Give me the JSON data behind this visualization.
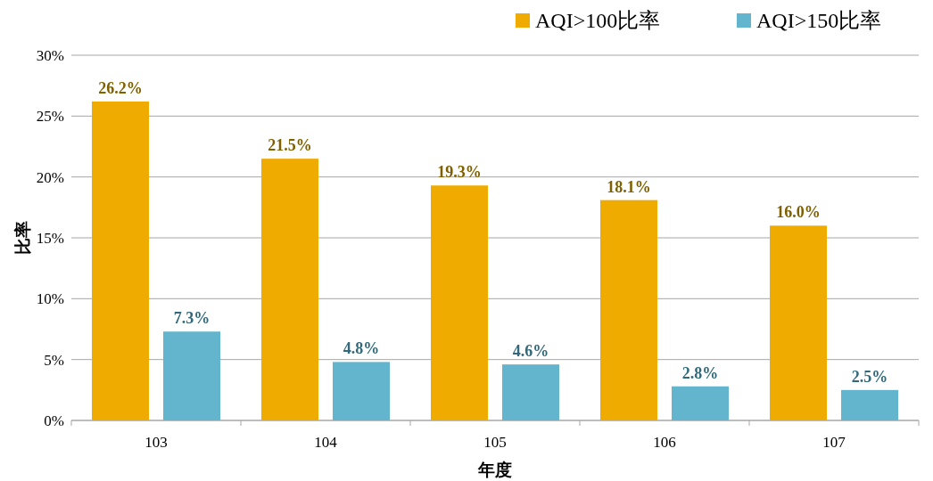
{
  "chart_data": {
    "type": "bar",
    "xlabel": "年度",
    "ylabel": "比率",
    "categories": [
      "103",
      "104",
      "105",
      "106",
      "107"
    ],
    "series": [
      {
        "name": "AQI>100比率",
        "color": "#f0ab00",
        "values": [
          26.2,
          21.5,
          19.3,
          18.1,
          16.0
        ],
        "value_labels": [
          "26.2%",
          "21.5%",
          "19.3%",
          "18.1%",
          "16.0%"
        ]
      },
      {
        "name": "AQI>150比率",
        "color": "#62b5cc",
        "values": [
          7.3,
          4.8,
          4.6,
          2.8,
          2.5
        ],
        "value_labels": [
          "7.3%",
          "4.8%",
          "4.6%",
          "2.8%",
          "2.5%"
        ]
      }
    ],
    "ylim": [
      0,
      30
    ],
    "yticks": [
      {
        "value": 0,
        "label": "0%"
      },
      {
        "value": 5,
        "label": "5%"
      },
      {
        "value": 10,
        "label": "10%"
      },
      {
        "value": 15,
        "label": "15%"
      },
      {
        "value": 20,
        "label": "20%"
      },
      {
        "value": 25,
        "label": "25%"
      },
      {
        "value": 30,
        "label": "30%"
      }
    ],
    "grid": "y",
    "legend": "top right"
  }
}
